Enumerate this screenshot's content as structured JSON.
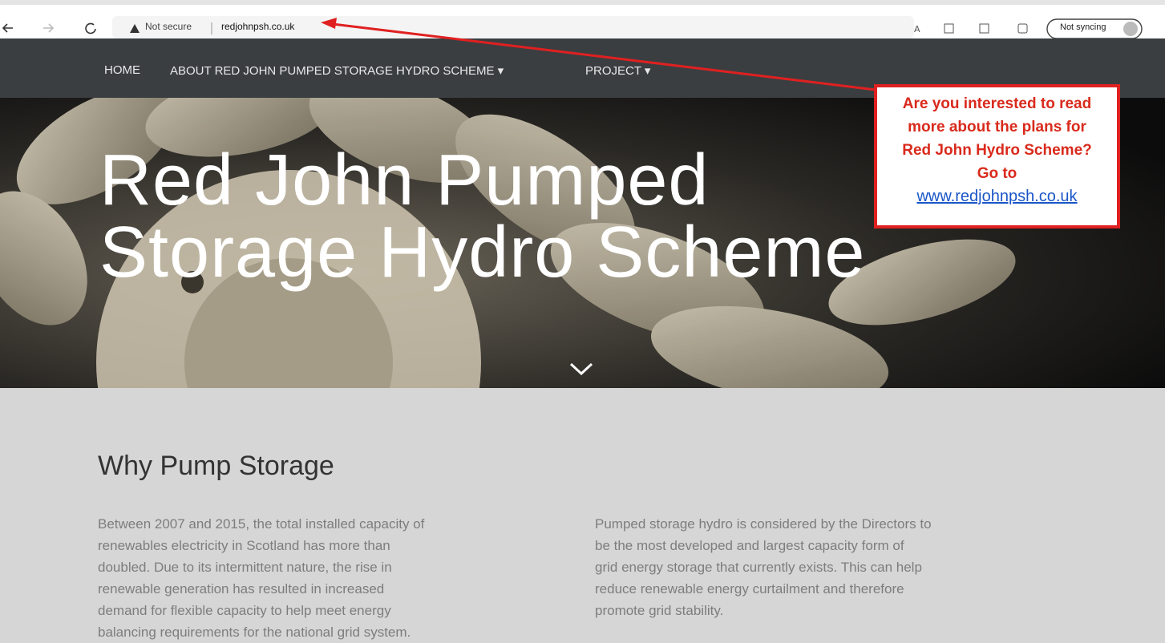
{
  "browser": {
    "security": "Not secure",
    "url": "redjohnpsh.co.uk",
    "sync": "Not syncing"
  },
  "nav": {
    "items": [
      "HOME",
      "ABOUT RED JOHN PUMPED STORAGE HYDRO SCHEME ▾",
      "PROJECT ▾"
    ]
  },
  "hero": {
    "title_lines": [
      "Red John Pumped",
      "Storage Hydro Scheme"
    ]
  },
  "callout": {
    "lines": [
      "Are you interested to read",
      "more about the plans for",
      "Red John Hydro Scheme?",
      "Go to"
    ],
    "link": "www.redjohnpsh.co.uk"
  },
  "section": {
    "heading": "Why Pump Storage",
    "columns": [
      [
        "Between 2007 and 2015, the total installed capacity of",
        "renewables electricity in Scotland has more than",
        "doubled.  Due to its intermittent nature, the rise in",
        "renewable generation has resulted in increased",
        "demand for flexible capacity to help meet energy",
        "balancing requirements for the national grid system."
      ],
      [
        "Pumped storage hydro is considered by the Directors to",
        "be the most developed and largest capacity form of",
        "grid energy storage that currently exists.  This can help",
        "reduce renewable energy curtailment and therefore",
        "promote grid stability."
      ]
    ]
  }
}
